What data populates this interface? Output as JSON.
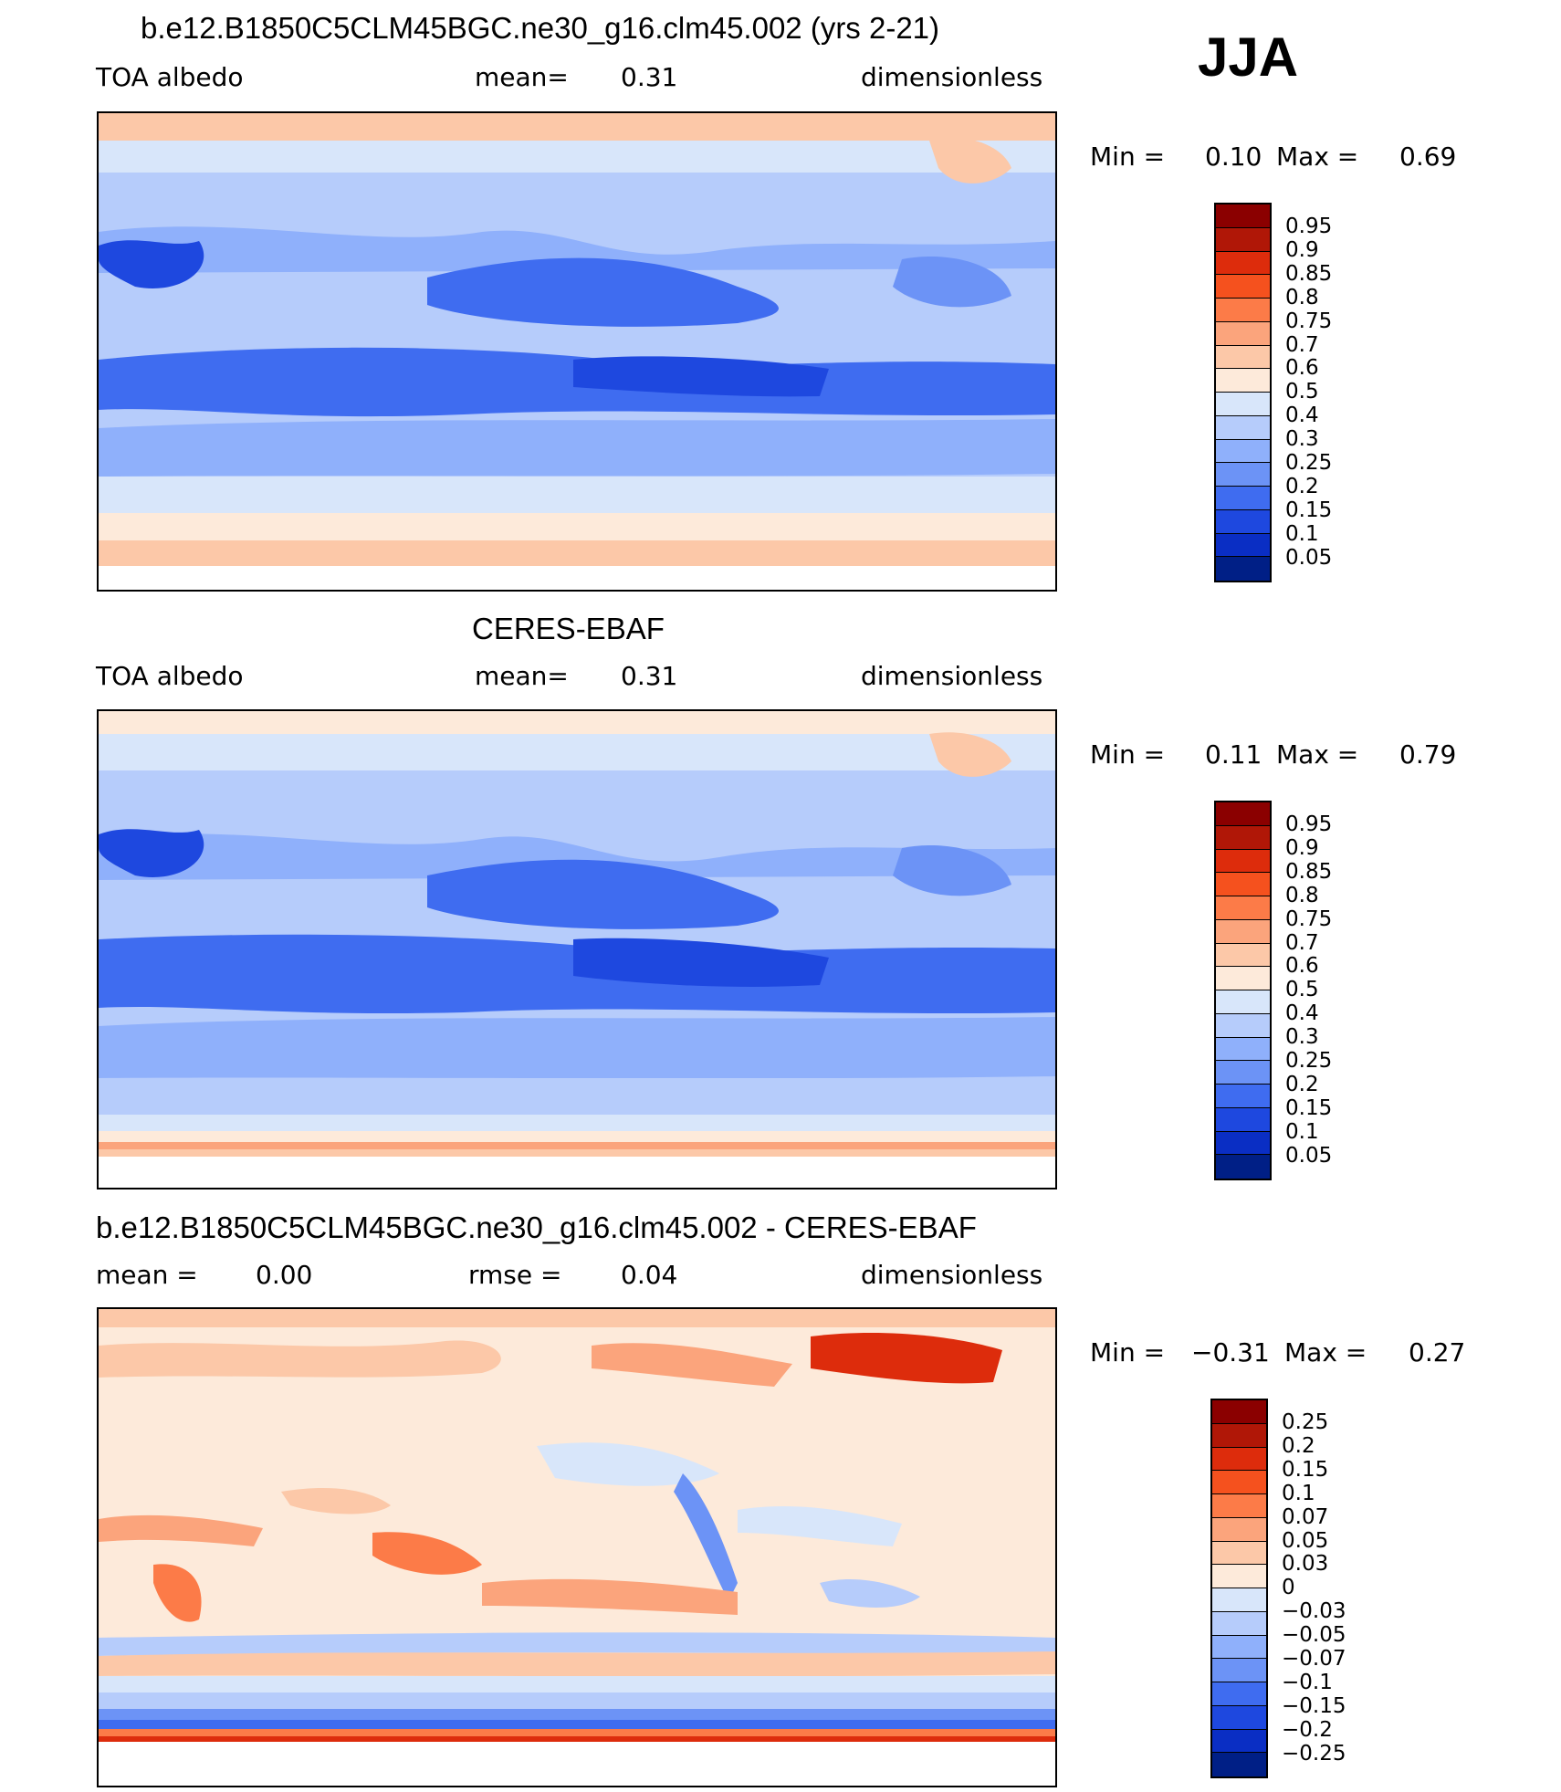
{
  "season": "JJA",
  "panels": [
    {
      "title": "b.e12.B1850C5CLM45BGC.ne30_g16.clm45.002 (yrs 2-21)",
      "left_label": "TOA  albedo",
      "center_label": "mean=",
      "center_value": "0.31",
      "right_label": "dimensionless",
      "min_label": "Min =",
      "min_value": "0.10",
      "max_label": "Max =",
      "max_value": "0.69",
      "levels": [
        "0.95",
        "0.9",
        "0.85",
        "0.8",
        "0.75",
        "0.7",
        "0.6",
        "0.5",
        "0.4",
        "0.3",
        "0.25",
        "0.2",
        "0.15",
        "0.1",
        "0.05"
      ],
      "colors": [
        "#8b0000",
        "#b01707",
        "#dd2c0c",
        "#f5511e",
        "#fc7b48",
        "#fba47c",
        "#fcc8a8",
        "#fdeada",
        "#d8e6fa",
        "#b6ccfb",
        "#8fb0fb",
        "#6c93f6",
        "#3f6cf0",
        "#1e48df",
        "#0a2ec4",
        "#001f86"
      ]
    },
    {
      "title": "CERES-EBAF",
      "left_label": "TOA  albedo",
      "center_label": "mean=",
      "center_value": "0.31",
      "right_label": "dimensionless",
      "min_label": "Min =",
      "min_value": "0.11",
      "max_label": "Max =",
      "max_value": "0.79",
      "levels": [
        "0.95",
        "0.9",
        "0.85",
        "0.8",
        "0.75",
        "0.7",
        "0.6",
        "0.5",
        "0.4",
        "0.3",
        "0.25",
        "0.2",
        "0.15",
        "0.1",
        "0.05"
      ],
      "colors": [
        "#8b0000",
        "#b01707",
        "#dd2c0c",
        "#f5511e",
        "#fc7b48",
        "#fba47c",
        "#fcc8a8",
        "#fdeada",
        "#d8e6fa",
        "#b6ccfb",
        "#8fb0fb",
        "#6c93f6",
        "#3f6cf0",
        "#1e48df",
        "#0a2ec4",
        "#001f86"
      ]
    },
    {
      "title": "b.e12.B1850C5CLM45BGC.ne30_g16.clm45.002 - CERES-EBAF",
      "left_label": "mean =",
      "left_value": "0.00",
      "center_label": "rmse =",
      "center_value": "0.04",
      "right_label": "dimensionless",
      "min_label": "Min =",
      "min_value": "−0.31",
      "max_label": "Max =",
      "max_value": "0.27",
      "levels": [
        "0.25",
        "0.2",
        "0.15",
        "0.1",
        "0.07",
        "0.05",
        "0.03",
        "0",
        "−0.03",
        "−0.05",
        "−0.07",
        "−0.1",
        "−0.15",
        "−0.2",
        "−0.25"
      ],
      "colors": [
        "#8b0000",
        "#b01707",
        "#dd2c0c",
        "#f5511e",
        "#fc7b48",
        "#fba47c",
        "#fcc8a8",
        "#fdeada",
        "#d8e6fa",
        "#b6ccfb",
        "#8fb0fb",
        "#6c93f6",
        "#3f6cf0",
        "#1e48df",
        "#0a2ec4",
        "#001f86"
      ]
    }
  ]
}
